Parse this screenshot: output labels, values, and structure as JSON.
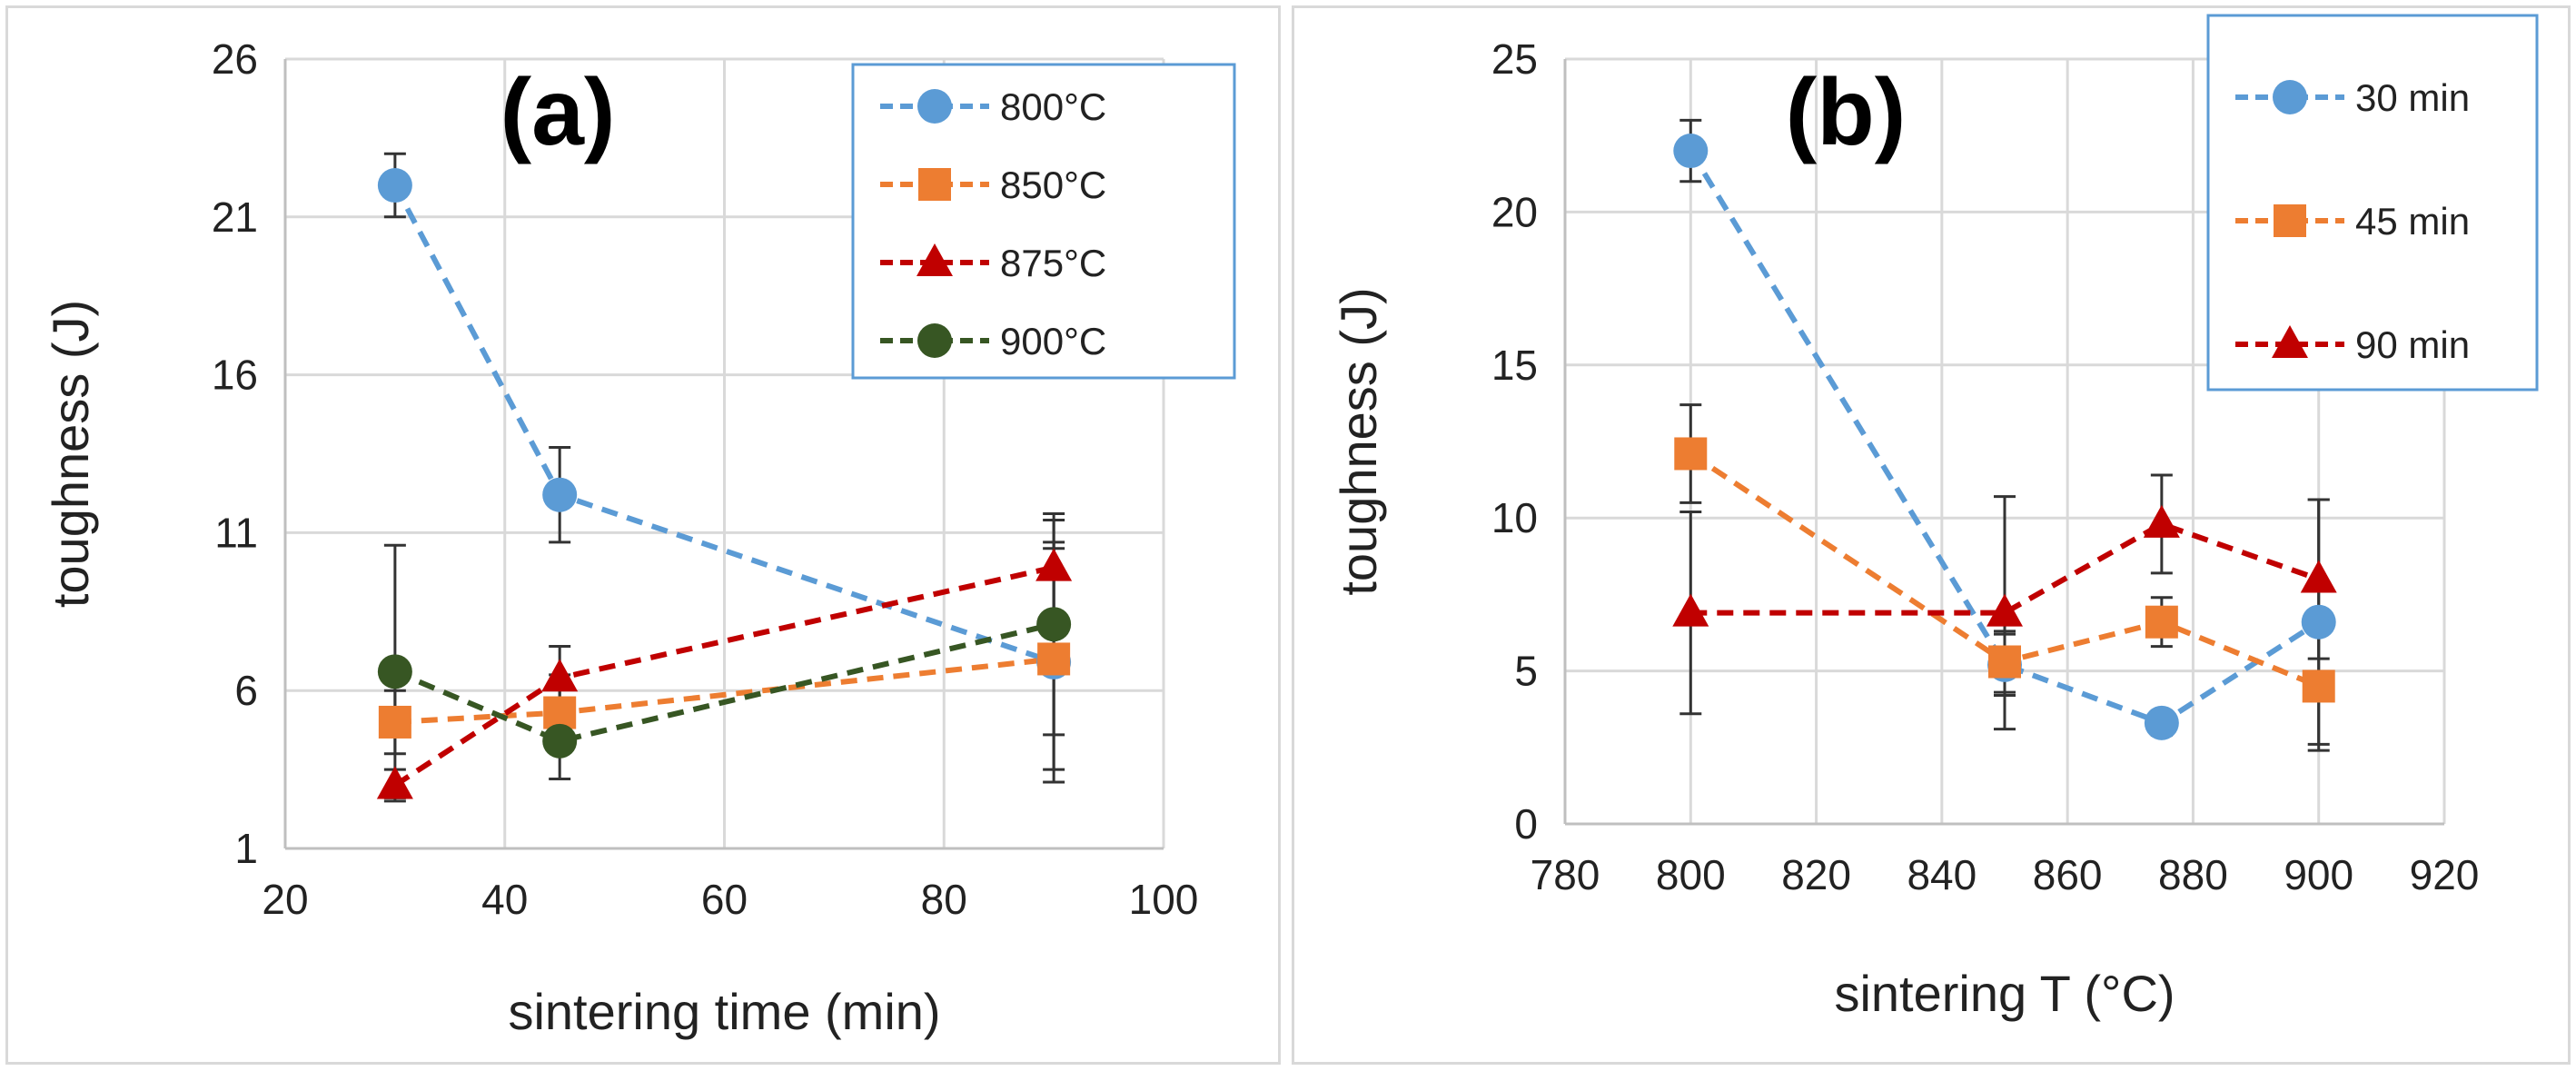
{
  "chart_data": [
    {
      "type": "line",
      "title": "(a)",
      "xlabel": "sintering time (min)",
      "ylabel": "toughness (J)",
      "xlim": [
        20,
        100
      ],
      "ylim": [
        1,
        26
      ],
      "xticks": [
        20,
        40,
        60,
        80,
        100
      ],
      "yticks": [
        1,
        6,
        11,
        16,
        21,
        26
      ],
      "x": [
        30,
        45,
        90
      ],
      "legend_position": "top-right",
      "series": [
        {
          "name": "800°C",
          "color": "#5b9bd5",
          "marker": "circle",
          "values": [
            22.0,
            12.2,
            6.9
          ],
          "errors": [
            1.0,
            1.5,
            3.8
          ]
        },
        {
          "name": "850°C",
          "color": "#ed7d31",
          "marker": "square",
          "values": [
            5.0,
            5.3,
            7.0
          ],
          "errors": [
            1.0,
            1.2,
            3.5
          ]
        },
        {
          "name": "875°C",
          "color": "#c00000",
          "marker": "triangle",
          "values": [
            3.0,
            6.4,
            9.9
          ],
          "errors": [
            0.5,
            1.0,
            1.5
          ]
        },
        {
          "name": "900°C",
          "color": "#375623",
          "marker": "circle",
          "values": [
            6.6,
            4.4,
            8.1
          ],
          "errors": [
            4.0,
            1.2,
            3.5
          ]
        }
      ]
    },
    {
      "type": "line",
      "title": "(b)",
      "xlabel": "sintering T (°C)",
      "ylabel": "toughness (J)",
      "xlim": [
        780,
        920
      ],
      "ylim": [
        0,
        25
      ],
      "xticks": [
        780,
        800,
        820,
        840,
        860,
        880,
        900,
        920
      ],
      "yticks": [
        0,
        5,
        10,
        15,
        20,
        25
      ],
      "x": [
        800,
        850,
        875,
        900
      ],
      "legend_position": "top-right",
      "series": [
        {
          "name": "30 min",
          "color": "#5b9bd5",
          "marker": "circle",
          "values": [
            22.0,
            5.2,
            3.3,
            6.6
          ],
          "errors": [
            1.0,
            1.0,
            0.4,
            4.0
          ]
        },
        {
          "name": "45 min",
          "color": "#ed7d31",
          "marker": "square",
          "values": [
            12.1,
            5.3,
            6.6,
            4.5
          ],
          "errors": [
            1.6,
            1.0,
            0.8,
            2.1
          ]
        },
        {
          "name": "90 min",
          "color": "#c00000",
          "marker": "triangle",
          "values": [
            6.9,
            6.9,
            9.8,
            8.0
          ],
          "errors": [
            3.3,
            3.8,
            1.6,
            2.6
          ]
        }
      ]
    }
  ]
}
